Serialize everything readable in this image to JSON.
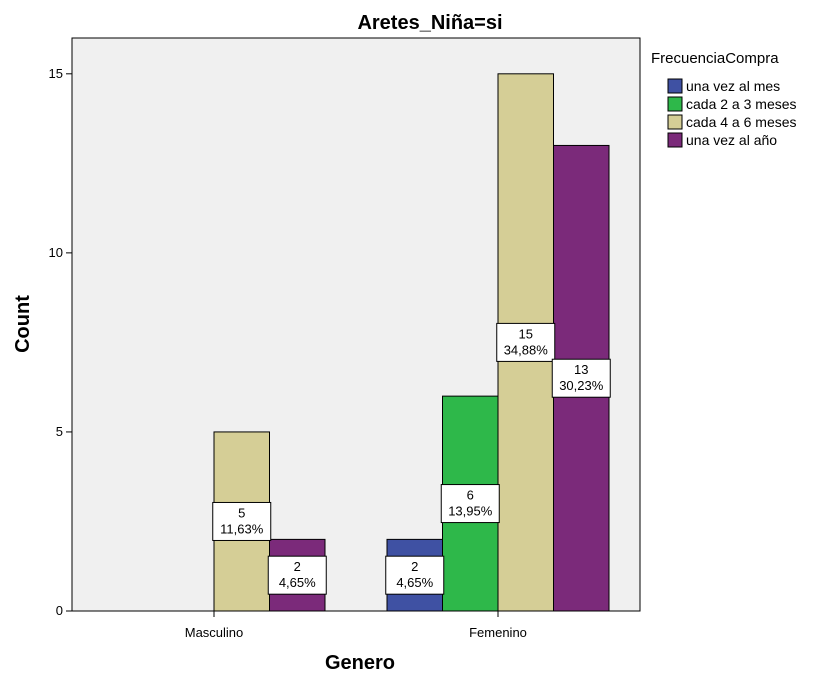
{
  "chart_data": {
    "type": "bar",
    "title": "Aretes_Niña=si",
    "xlabel": "Genero",
    "ylabel": "Count",
    "categories": [
      "Masculino",
      "Femenino"
    ],
    "ylim": [
      0,
      16
    ],
    "yticks": [
      0,
      5,
      10,
      15
    ],
    "legend": {
      "title": "FrecuenciaCompra",
      "position": "right"
    },
    "series": [
      {
        "name": "una vez al mes",
        "color": "#3F51A3",
        "values": [
          null,
          2
        ],
        "labels": [
          null,
          "4,65%"
        ]
      },
      {
        "name": "cada 2 a 3 meses",
        "color": "#2EB84A",
        "values": [
          null,
          6
        ],
        "labels": [
          null,
          "13,95%"
        ]
      },
      {
        "name": "cada 4 a 6 meses",
        "color": "#D5CE96",
        "values": [
          5,
          15
        ],
        "labels": [
          "11,63%",
          "34,88%"
        ]
      },
      {
        "name": "una vez al año",
        "color": "#7B2A7A",
        "values": [
          2,
          13
        ],
        "labels": [
          "4,65%",
          "30,23%"
        ]
      }
    ]
  }
}
